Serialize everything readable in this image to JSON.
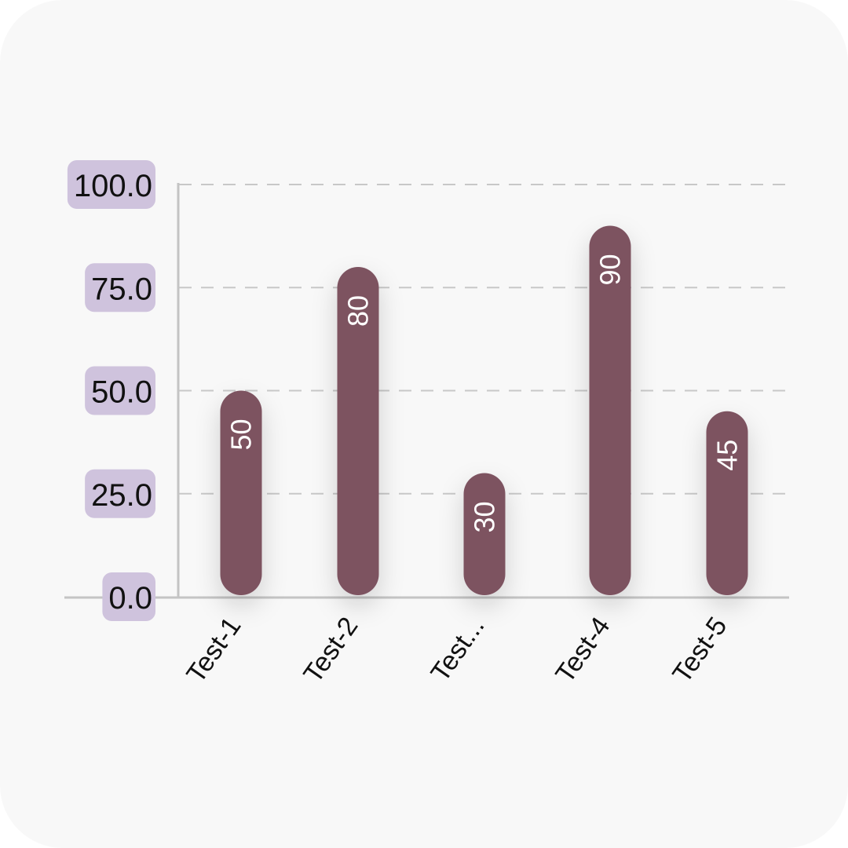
{
  "chart_data": {
    "type": "bar",
    "categories": [
      "Test-1",
      "Test-2",
      "Test...",
      "Test-4",
      "Test-5"
    ],
    "values": [
      50,
      80,
      30,
      90,
      45
    ],
    "data_labels": [
      "50",
      "80",
      "30",
      "90",
      "45"
    ],
    "y_ticks": [
      "0.0",
      "25.0",
      "50.0",
      "75.0",
      "100.0"
    ],
    "ylim": [
      0,
      100
    ],
    "grid": true,
    "colors": {
      "bar": "#7d5261",
      "tick_badge": "#cfc3dd",
      "grid": "#c8c8c8",
      "axis": "#c4c4c4",
      "background": "#f8f8f8"
    }
  }
}
